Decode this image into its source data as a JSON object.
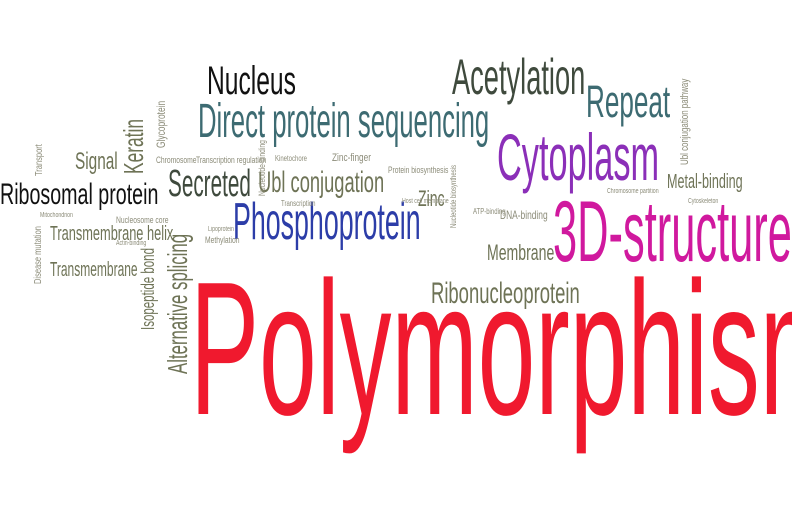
{
  "colors": {
    "red": "#f0192e",
    "magenta": "#d0199e",
    "purple": "#8b2fb8",
    "blue": "#2c3da8",
    "teal": "#3d6b72",
    "dark_green": "#3f4a3d",
    "black": "#111111",
    "olive": "#6e7356",
    "gray": "#8c8c79"
  },
  "words": {
    "polymorphism": "Polymorphism",
    "structure_3d": "3D-structure",
    "cytoplasm": "Cytoplasm",
    "phosphoprotein": "Phosphoprotein",
    "direct_protein_sequencing": "Direct protein sequencing",
    "acetylation": "Acetylation",
    "repeat": "Repeat",
    "nucleus": "Nucleus",
    "ribosomal_protein": "Ribosomal protein",
    "secreted": "Secreted",
    "ubl_conjugation": "Ubl conjugation",
    "alternative_splicing": "Alternative splicing",
    "keratin": "Keratin",
    "ribonucleoprotein": "Ribonucleoprotein",
    "membrane": "Membrane",
    "metal_binding": "Metal-binding",
    "transmembrane_helix": "Transmembrane helix",
    "transmembrane": "Transmembrane",
    "signal": "Signal",
    "zinc": "Zinc",
    "isopeptide_bond": "Isopeptide bond",
    "dna_binding": "DNA-binding",
    "zinc_finger": "Zinc-finger",
    "glycoprotein": "Glycoprotein",
    "ubl_conjugation_pathway": "Ubl conjugation pathway",
    "disease_mutation": "Disease mutation",
    "transport": "Transport",
    "chromosome": "Chromosome",
    "transcription_regulation": "Transcription regulation",
    "protein_biosynthesis": "Protein biosynthesis",
    "nucleotide_binding": "Nucleotide-binding",
    "transcription": "Transcription",
    "nucleosome_core": "Nucleosome core",
    "methylation": "Methylation",
    "atp_binding": "ATP-binding",
    "kinetochore": "Kinetochore",
    "chromosome_partition": "Chromosome partition",
    "mitochondrion": "Mitochondrion",
    "cytoskeleton": "Cytoskeleton",
    "lipoprotein": "Lipoprotein",
    "nucleotide_biosynthesis": "Nucleotide biosynthesis",
    "host_cell_membrane": "Host cell membrane",
    "actin_binding": "Actin-binding"
  }
}
